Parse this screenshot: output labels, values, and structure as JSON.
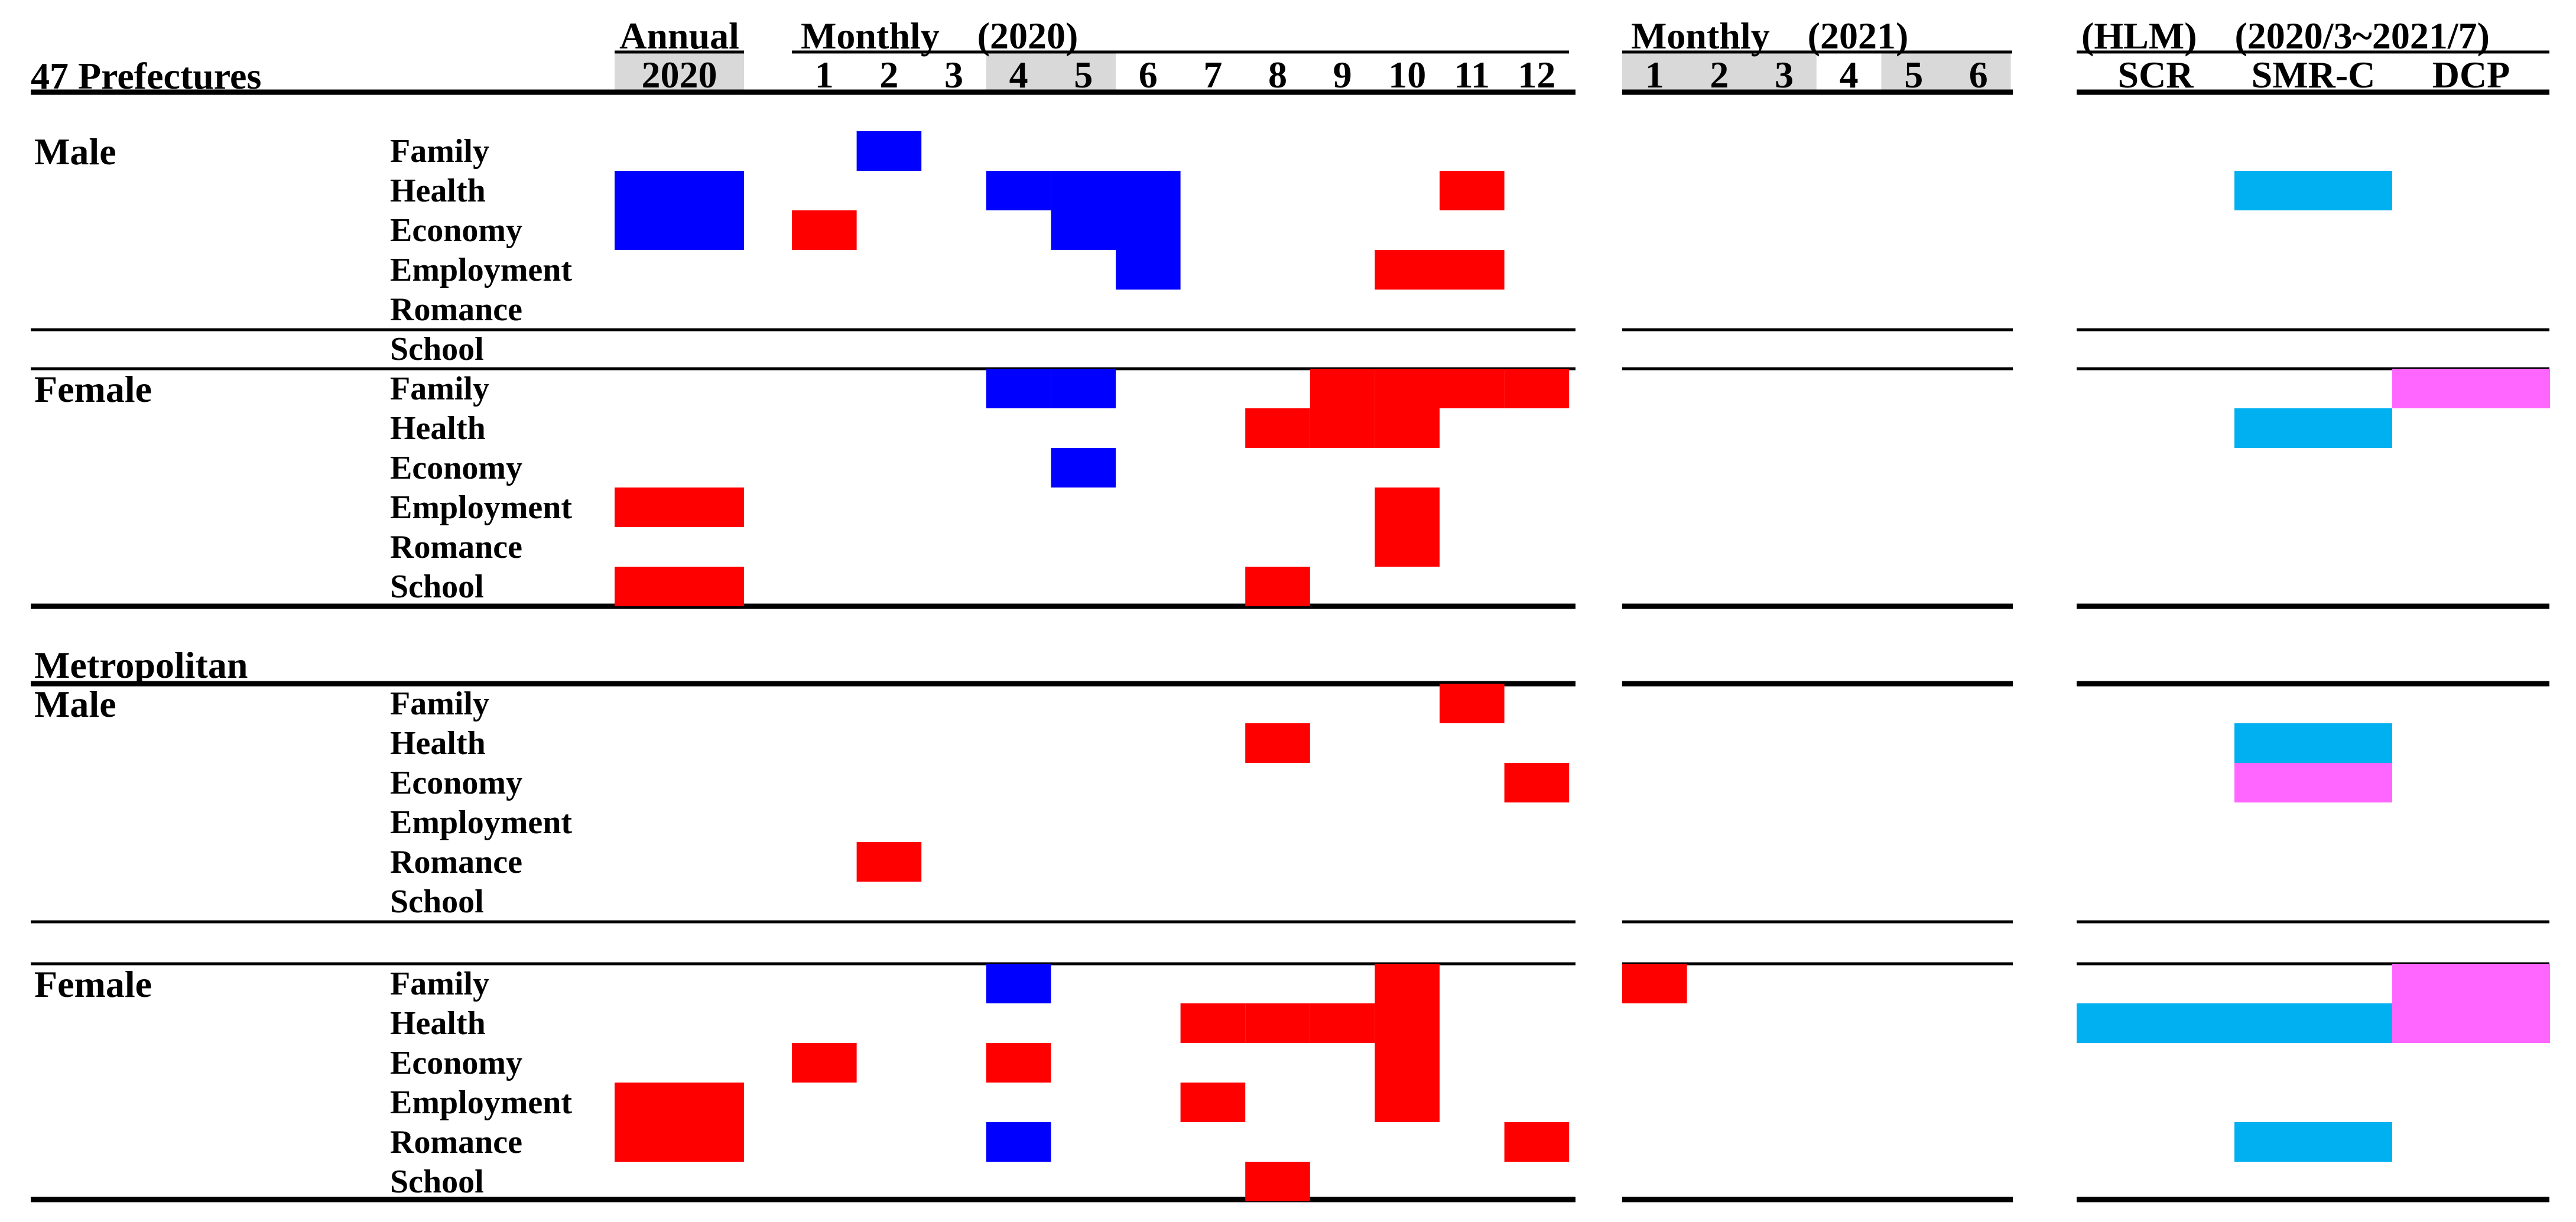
{
  "chart_data": {
    "type": "heatmap",
    "header": {
      "prefectures_title": "47 Prefectures",
      "annual_title": "Annual",
      "annual_col": "2020",
      "monthly2020_title": "Monthly　(2020)",
      "monthly2020_cols": [
        "1",
        "2",
        "3",
        "4",
        "5",
        "6",
        "7",
        "8",
        "9",
        "10",
        "11",
        "12"
      ],
      "monthly2021_title": "Monthly　(2021)",
      "monthly2021_cols": [
        "1",
        "2",
        "3",
        "4",
        "5",
        "6"
      ],
      "hlm_title": "(HLM)　(2020/3~2021/7)",
      "hlm_cols": [
        "SCR",
        "SMR-C",
        "DCP"
      ]
    },
    "row_labels": [
      "Family",
      "Health",
      "Economy",
      "Employment",
      "Romance",
      "School"
    ],
    "colors": {
      "increase": "#ff0000",
      "decrease": "#0000ff",
      "hlm_cyan": "#00b0f0",
      "hlm_magenta": "#ff66ff",
      "header_shade": "#d9d9d9",
      "rule": "#000000"
    },
    "sections": [
      {
        "region": "47 Prefectures",
        "sex": "Male",
        "cells": [
          [
            "m2020-2",
            "Family",
            "blue"
          ],
          [
            "annual",
            "Health",
            "blue"
          ],
          [
            "annual",
            "Economy",
            "blue"
          ],
          [
            "m2020-1",
            "Economy",
            "red"
          ],
          [
            "m2020-4",
            "Health",
            "blue"
          ],
          [
            "m2020-5",
            "Health",
            "blue"
          ],
          [
            "m2020-6",
            "Health",
            "blue"
          ],
          [
            "m2020-5",
            "Economy",
            "blue"
          ],
          [
            "m2020-6",
            "Economy",
            "blue"
          ],
          [
            "m2020-6",
            "Employment",
            "blue"
          ],
          [
            "m2020-11",
            "Health",
            "red"
          ],
          [
            "m2020-10",
            "Employment",
            "red"
          ],
          [
            "m2020-11",
            "Employment",
            "red"
          ],
          [
            "hlm-SMR-C",
            "Health",
            "cyan"
          ]
        ]
      },
      {
        "region": "47 Prefectures",
        "sex": "Female",
        "cells": [
          [
            "m2020-4",
            "Family",
            "blue"
          ],
          [
            "m2020-5",
            "Family",
            "blue"
          ],
          [
            "m2020-9",
            "Family",
            "red"
          ],
          [
            "m2020-10",
            "Family",
            "red"
          ],
          [
            "m2020-11",
            "Family",
            "red"
          ],
          [
            "m2020-12",
            "Family",
            "red"
          ],
          [
            "m2020-8",
            "Health",
            "red"
          ],
          [
            "m2020-9",
            "Health",
            "red"
          ],
          [
            "m2020-10",
            "Health",
            "red"
          ],
          [
            "m2020-5",
            "Economy",
            "blue"
          ],
          [
            "annual",
            "Employment",
            "red"
          ],
          [
            "m2020-10",
            "Employment",
            "red"
          ],
          [
            "m2020-10",
            "Romance",
            "red"
          ],
          [
            "annual",
            "School",
            "red"
          ],
          [
            "m2020-8",
            "School",
            "red"
          ],
          [
            "hlm-SMR-C",
            "Health",
            "cyan"
          ],
          [
            "hlm-DCP",
            "Family",
            "magenta"
          ]
        ]
      },
      {
        "region": "Metropolitan",
        "sex": "Male",
        "cells": [
          [
            "m2020-11",
            "Family",
            "red"
          ],
          [
            "m2020-8",
            "Health",
            "red"
          ],
          [
            "m2020-12",
            "Economy",
            "red"
          ],
          [
            "m2020-2",
            "Romance",
            "red"
          ],
          [
            "hlm-SMR-C",
            "Health",
            "cyan"
          ],
          [
            "hlm-SMR-C",
            "Economy",
            "magenta"
          ]
        ]
      },
      {
        "region": "Metropolitan",
        "sex": "Female",
        "cells": [
          [
            "m2020-4",
            "Family",
            "blue"
          ],
          [
            "m2020-10",
            "Family",
            "red"
          ],
          [
            "m2020-7",
            "Health",
            "red"
          ],
          [
            "m2020-8",
            "Health",
            "red"
          ],
          [
            "m2020-9",
            "Health",
            "red"
          ],
          [
            "m2020-10",
            "Health",
            "red"
          ],
          [
            "m2020-1",
            "Economy",
            "red"
          ],
          [
            "m2020-4",
            "Economy",
            "red"
          ],
          [
            "m2020-10",
            "Economy",
            "red"
          ],
          [
            "annual",
            "Employment",
            "red"
          ],
          [
            "m2020-7",
            "Employment",
            "red"
          ],
          [
            "m2020-10",
            "Employment",
            "red"
          ],
          [
            "annual",
            "Romance",
            "red"
          ],
          [
            "m2020-4",
            "Romance",
            "blue"
          ],
          [
            "m2020-12",
            "Romance",
            "red"
          ],
          [
            "m2020-8",
            "School",
            "red"
          ],
          [
            "m2021-1",
            "Family",
            "red"
          ],
          [
            "hlm-SCR",
            "Health",
            "cyan"
          ],
          [
            "hlm-SMR-C",
            "Health",
            "cyan"
          ],
          [
            "hlm-DCP",
            "Family",
            "magenta"
          ],
          [
            "hlm-DCP",
            "Health",
            "magenta"
          ],
          [
            "hlm-SMR-C",
            "Romance",
            "cyan"
          ]
        ]
      }
    ],
    "metro_label": "Metropolitan",
    "sex_labels": {
      "male": "Male",
      "female": "Female"
    }
  }
}
